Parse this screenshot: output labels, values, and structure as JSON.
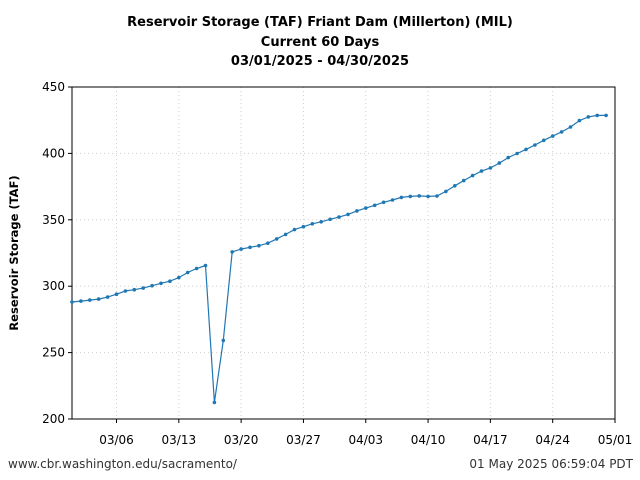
{
  "title_lines": [
    "Reservoir Storage (TAF) Friant Dam (Millerton) (MIL)",
    "Current 60 Days",
    "03/01/2025 - 04/30/2025"
  ],
  "footer": {
    "left": "www.cbr.washington.edu/sacramento/",
    "right": "01 May 2025 06:59:04 PDT"
  },
  "chart_data": {
    "type": "line",
    "title": "Reservoir Storage (TAF) Friant Dam (Millerton) (MIL)",
    "subtitle": "Current 60 Days / 03/01/2025 - 04/30/2025",
    "xlabel": "",
    "ylabel": "Reservoir Storage (TAF)",
    "ylim": [
      200,
      450
    ],
    "yticks": [
      200,
      250,
      300,
      350,
      400,
      450
    ],
    "xlim": [
      "2025-03-01",
      "2025-05-01"
    ],
    "xticks": [
      {
        "date": "2025-03-06",
        "label": "03/06"
      },
      {
        "date": "2025-03-13",
        "label": "03/13"
      },
      {
        "date": "2025-03-20",
        "label": "03/20"
      },
      {
        "date": "2025-03-27",
        "label": "03/27"
      },
      {
        "date": "2025-04-03",
        "label": "04/03"
      },
      {
        "date": "2025-04-10",
        "label": "04/10"
      },
      {
        "date": "2025-04-17",
        "label": "04/17"
      },
      {
        "date": "2025-04-24",
        "label": "04/24"
      },
      {
        "date": "2025-05-01",
        "label": "05/01"
      }
    ],
    "grid": true,
    "color": "#1f77b4",
    "series": [
      {
        "x": [
          "2025-03-01",
          "2025-03-02",
          "2025-03-03",
          "2025-03-04",
          "2025-03-05",
          "2025-03-06",
          "2025-03-07",
          "2025-03-08",
          "2025-03-09",
          "2025-03-10",
          "2025-03-11",
          "2025-03-12",
          "2025-03-13",
          "2025-03-14",
          "2025-03-15",
          "2025-03-16",
          "2025-03-17",
          "2025-03-18",
          "2025-03-19",
          "2025-03-20",
          "2025-03-21",
          "2025-03-22",
          "2025-03-23",
          "2025-03-24",
          "2025-03-25",
          "2025-03-26",
          "2025-03-27",
          "2025-03-28",
          "2025-03-29",
          "2025-03-30",
          "2025-03-31",
          "2025-04-01",
          "2025-04-02",
          "2025-04-03",
          "2025-04-04",
          "2025-04-05",
          "2025-04-06",
          "2025-04-07",
          "2025-04-08",
          "2025-04-09",
          "2025-04-10",
          "2025-04-11",
          "2025-04-12",
          "2025-04-13",
          "2025-04-14",
          "2025-04-15",
          "2025-04-16",
          "2025-04-17",
          "2025-04-18",
          "2025-04-19",
          "2025-04-20",
          "2025-04-21",
          "2025-04-22",
          "2025-04-23",
          "2025-04-24",
          "2025-04-25",
          "2025-04-26",
          "2025-04-27",
          "2025-04-28",
          "2025-04-29",
          "2025-04-30"
        ],
        "y": [
          288.1,
          288.8,
          289.5,
          290.3,
          291.8,
          294.0,
          296.4,
          297.4,
          298.6,
          300.4,
          302.2,
          303.8,
          306.5,
          310.3,
          313.3,
          315.6,
          212.5,
          259.2,
          325.8,
          327.9,
          329.3,
          330.5,
          332.4,
          335.6,
          339.0,
          342.6,
          344.8,
          347.0,
          348.5,
          350.4,
          352.0,
          354.1,
          356.7,
          358.8,
          360.9,
          363.2,
          364.9,
          366.9,
          367.6,
          368.0,
          367.6,
          367.9,
          371.4,
          375.6,
          379.5,
          383.3,
          386.7,
          389.1,
          392.7,
          396.8,
          399.9,
          403.0,
          406.3,
          409.9,
          413.0,
          416.2,
          419.9,
          424.7,
          427.5,
          428.6,
          428.6
        ]
      }
    ]
  }
}
